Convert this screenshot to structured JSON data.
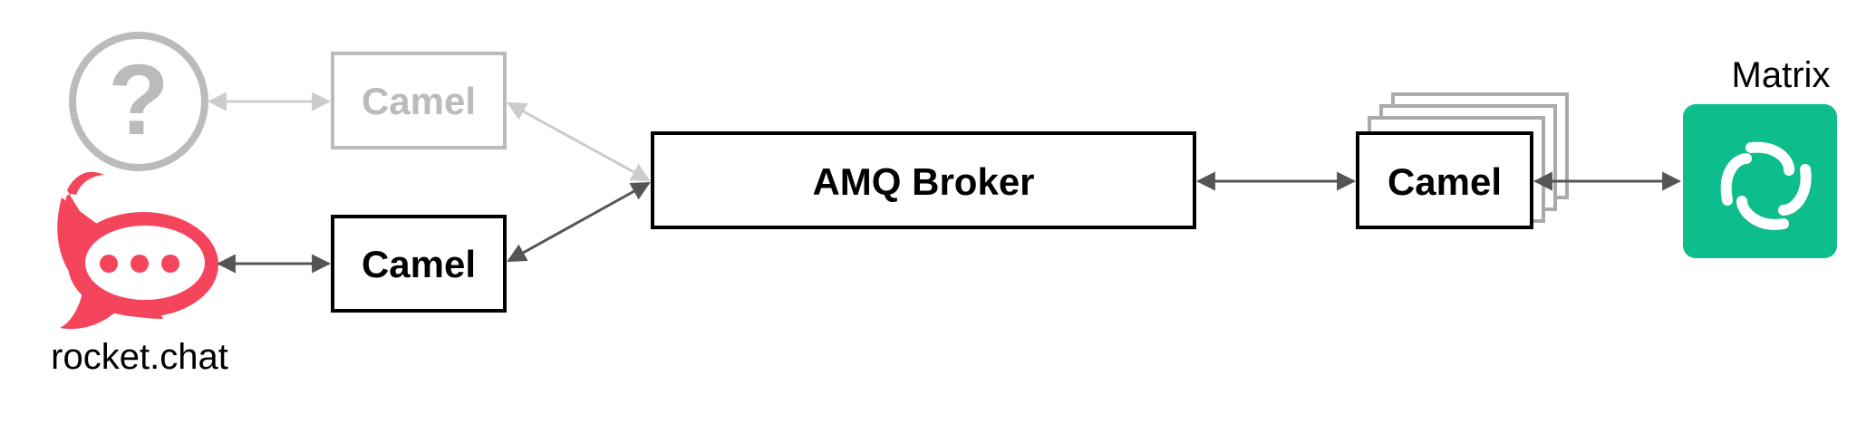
{
  "nodes": {
    "unknown_source": {
      "icon": "question-mark-icon",
      "glyph": "?"
    },
    "camel_faded": {
      "label": "Camel"
    },
    "rocket_chat": {
      "label": "rocket.chat",
      "icon": "rocket-chat-logo-icon",
      "color": "#f5455c"
    },
    "camel_rocket": {
      "label": "Camel"
    },
    "broker": {
      "label": "AMQ Broker"
    },
    "camel_matrix": {
      "label": "Camel"
    },
    "matrix": {
      "label": "Matrix",
      "icon": "element-matrix-logo-icon",
      "color": "#0dbd8b"
    }
  },
  "colors": {
    "active": "#000000",
    "faded": "#bbbbbb",
    "faded_arrow": "#cccccc",
    "arrow": "#555555",
    "stack_shadow": "#aaaaaa"
  }
}
